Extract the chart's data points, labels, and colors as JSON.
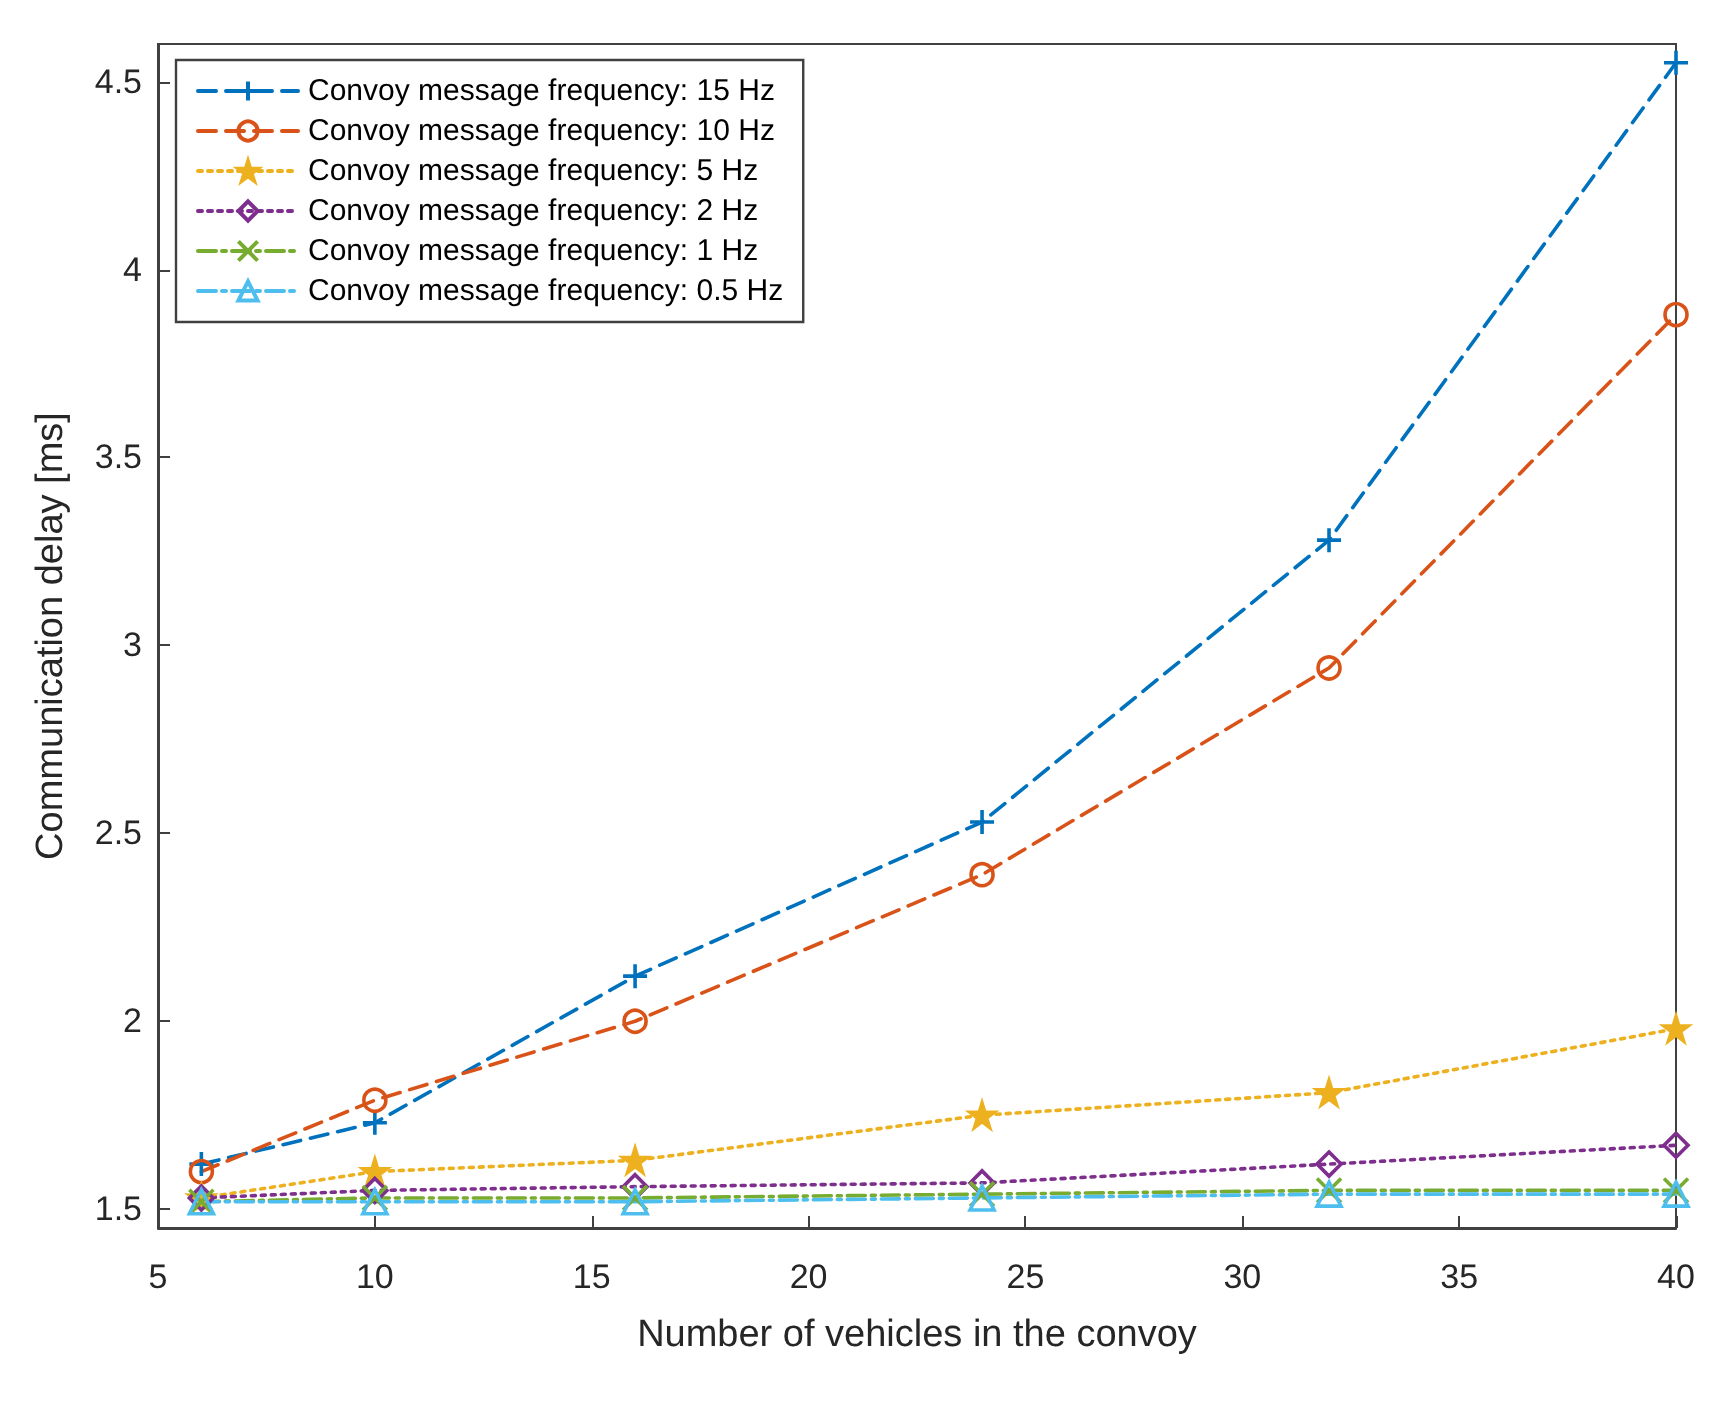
{
  "chart_data": {
    "type": "line",
    "xlabel": "Number of vehicles in the convoy",
    "ylabel": "Communication delay [ms]",
    "x": [
      6,
      10,
      16,
      24,
      32,
      40
    ],
    "series": [
      {
        "name": "Convoy message frequency: 15 Hz",
        "color": "#0072bd",
        "marker": "cross",
        "line_style": "dashed",
        "values": [
          1.62,
          1.73,
          2.12,
          2.53,
          3.28,
          4.55
        ]
      },
      {
        "name": "Convoy message frequency: 10 Hz",
        "color": "#d95319",
        "marker": "circle",
        "line_style": "dashed",
        "values": [
          1.6,
          1.79,
          2.0,
          2.39,
          2.94,
          3.88
        ]
      },
      {
        "name": "Convoy message frequency: 5 Hz",
        "color": "#edb120",
        "marker": "star",
        "line_style": "dotted",
        "values": [
          1.53,
          1.6,
          1.63,
          1.75,
          1.81,
          1.98
        ]
      },
      {
        "name": "Convoy message frequency: 2 Hz",
        "color": "#7e2f8e",
        "marker": "diamond",
        "line_style": "dotted",
        "values": [
          1.53,
          1.55,
          1.56,
          1.57,
          1.62,
          1.67
        ]
      },
      {
        "name": "Convoy message frequency: 1 Hz",
        "color": "#77ac30",
        "marker": "x",
        "line_style": "dashdot",
        "values": [
          1.52,
          1.53,
          1.53,
          1.54,
          1.55,
          1.55
        ]
      },
      {
        "name": "Convoy message frequency: 0.5 Hz",
        "color": "#4dbeee",
        "marker": "triangle",
        "line_style": "dashdot",
        "values": [
          1.52,
          1.52,
          1.52,
          1.53,
          1.54,
          1.54
        ]
      }
    ],
    "xlim": [
      5,
      40
    ],
    "xticks": [
      5,
      10,
      15,
      20,
      25,
      30,
      35,
      40
    ],
    "ylim": [
      1.45,
      4.6
    ],
    "yticks": [
      1.5,
      2,
      2.5,
      3,
      3.5,
      4,
      4.5
    ],
    "grid": false,
    "legend": "top left"
  }
}
